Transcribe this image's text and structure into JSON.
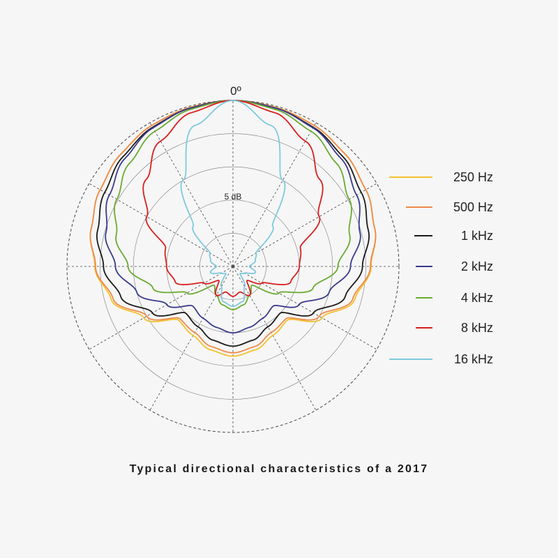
{
  "caption": "Typical directional characteristics of a 2017",
  "chart_data": {
    "type": "polar",
    "title": "",
    "angle_label": "0º",
    "radial_label": "5 dB",
    "grid": true,
    "radial_unit": "dB",
    "rlim": [
      -25,
      0
    ],
    "angles_deg": [
      0,
      15,
      30,
      45,
      60,
      75,
      90,
      105,
      120,
      135,
      150,
      165,
      180
    ],
    "legend_position": "right",
    "series": [
      {
        "name": "250 Hz",
        "color": "#f2c12e",
        "values": [
          0,
          -0.2,
          -0.5,
          -1.1,
          -1.9,
          -2.9,
          -4.2,
          -6.0,
          -9.5,
          -13.5,
          -13.0,
          -12.0,
          -11.5
        ]
      },
      {
        "name": "500 Hz",
        "color": "#ee8a4a",
        "values": [
          0,
          -0.2,
          -0.5,
          -1.1,
          -1.9,
          -2.9,
          -4.3,
          -6.3,
          -10.0,
          -13.8,
          -13.5,
          -12.5,
          -12.0
        ]
      },
      {
        "name": "1 kHz",
        "color": "#1a1a1a",
        "values": [
          0,
          -0.3,
          -0.8,
          -1.6,
          -2.7,
          -3.9,
          -5.5,
          -7.5,
          -11.0,
          -15.0,
          -14.5,
          -13.5,
          -13.0
        ]
      },
      {
        "name": "2 kHz",
        "color": "#3a3a8c",
        "values": [
          0,
          -0.3,
          -0.9,
          -2.0,
          -3.5,
          -5.2,
          -7.3,
          -10.0,
          -13.5,
          -16.5,
          -16.0,
          -15.5,
          -15.0
        ]
      },
      {
        "name": "4 kHz",
        "color": "#6aaa30",
        "values": [
          0,
          -0.5,
          -1.5,
          -3.0,
          -4.8,
          -6.8,
          -9.2,
          -12.5,
          -17.0,
          -21.0,
          -20.0,
          -19.0,
          -18.5
        ]
      },
      {
        "name": "8 kHz",
        "color": "#d81e1e",
        "values": [
          0,
          -1.0,
          -3.2,
          -6.5,
          -10.0,
          -14.5,
          -15.0,
          -16.0,
          -20.0,
          -22.0,
          -20.0,
          -21.0,
          -20.5
        ]
      },
      {
        "name": "16 kHz",
        "color": "#7ec9dc",
        "values": [
          0,
          -3.0,
          -10.0,
          -16.5,
          -21.0,
          -21.5,
          -22.5,
          -21.5,
          -23.0,
          -23.5,
          -21.5,
          -19.5,
          -19.0
        ]
      }
    ]
  }
}
